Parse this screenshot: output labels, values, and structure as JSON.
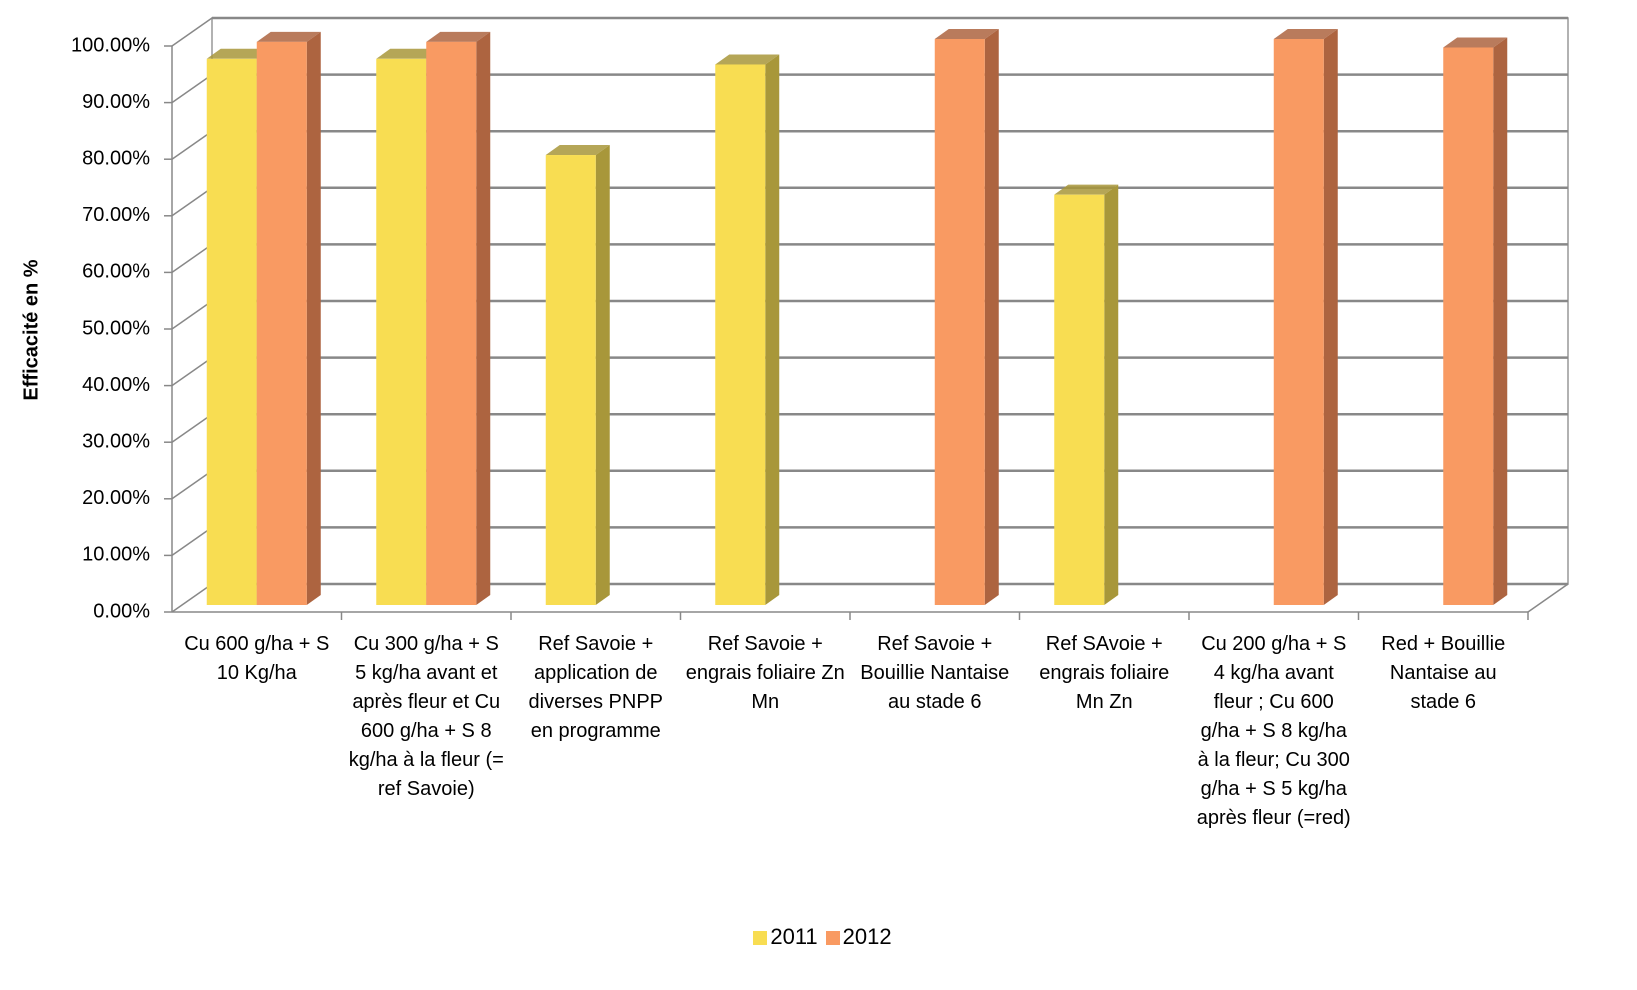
{
  "chart_data": {
    "type": "bar3d",
    "y_label": "Efficacité en %",
    "categories": [
      "Cu 600 g/ha + S 10 Kg/ha",
      "Cu 300 g/ha + S 5 kg/ha avant et après fleur et Cu 600 g/ha + S 8 kg/ha à la fleur (= ref Savoie)",
      "Ref Savoie + application de diverses PNPP en programme",
      "Ref Savoie + engrais foliaire Zn Mn",
      "Ref Savoie + Bouillie Nantaise au stade 6",
      "Ref SAvoie + engrais foliaire Mn Zn",
      "Cu 200 g/ha + S 4 kg/ha avant fleur ; Cu 600 g/ha + S 8 kg/ha à la fleur; Cu 300 g/ha + S 5 kg/ha après fleur (=red)",
      "Red + Bouillie Nantaise au stade 6"
    ],
    "series": [
      {
        "name": "2011",
        "color": "#f8dd52",
        "side_color": "#a8973a",
        "values": [
          96.5,
          96.5,
          79.5,
          95.5,
          null,
          72.5,
          null,
          null
        ]
      },
      {
        "name": "2012",
        "color": "#f99a62",
        "side_color": "#ad6440",
        "values": [
          99.5,
          99.5,
          null,
          null,
          100,
          null,
          100,
          98.5
        ]
      }
    ],
    "ylim": [
      0,
      100
    ],
    "yticks": [
      {
        "value": 0,
        "label": "0.00%"
      },
      {
        "value": 10,
        "label": "10.00%"
      },
      {
        "value": 20,
        "label": "20.00%"
      },
      {
        "value": 30,
        "label": "30.00%"
      },
      {
        "value": 40,
        "label": "40.00%"
      },
      {
        "value": 50,
        "label": "50.00%"
      },
      {
        "value": 60,
        "label": "60.00%"
      },
      {
        "value": 70,
        "label": "70.00%"
      },
      {
        "value": 80,
        "label": "80.00%"
      },
      {
        "value": 90,
        "label": "90.00%"
      },
      {
        "value": 100,
        "label": "100.00%"
      }
    ],
    "grid": true,
    "legend": "bottom"
  }
}
